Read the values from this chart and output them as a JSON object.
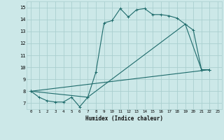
{
  "xlabel": "Humidex (Indice chaleur)",
  "xlim": [
    -0.5,
    23.5
  ],
  "ylim": [
    6.5,
    15.5
  ],
  "xticks": [
    0,
    1,
    2,
    3,
    4,
    5,
    6,
    7,
    8,
    9,
    10,
    11,
    12,
    13,
    14,
    15,
    16,
    17,
    18,
    19,
    20,
    21,
    22,
    23
  ],
  "yticks": [
    7,
    8,
    9,
    10,
    11,
    12,
    13,
    14,
    15
  ],
  "bg_color": "#cce8e8",
  "grid_color": "#aacfcf",
  "line_color": "#1e6b6b",
  "line1_x": [
    0,
    1,
    2,
    3,
    4,
    5,
    6,
    7,
    8,
    9,
    10,
    11,
    12,
    13,
    14,
    15,
    16,
    17,
    18,
    19,
    20,
    21,
    22
  ],
  "line1_y": [
    8.0,
    7.5,
    7.2,
    7.1,
    7.1,
    7.5,
    6.7,
    7.5,
    9.6,
    13.7,
    13.9,
    14.9,
    14.2,
    14.8,
    14.9,
    14.4,
    14.4,
    14.3,
    14.1,
    13.6,
    13.1,
    9.8,
    9.8
  ],
  "line2_x": [
    0,
    7,
    19,
    21,
    22
  ],
  "line2_y": [
    8.0,
    7.5,
    13.6,
    9.8,
    9.8
  ],
  "line3_x": [
    0,
    22
  ],
  "line3_y": [
    8.0,
    9.8
  ],
  "marker": "+",
  "markersize": 3,
  "linewidth": 0.8
}
